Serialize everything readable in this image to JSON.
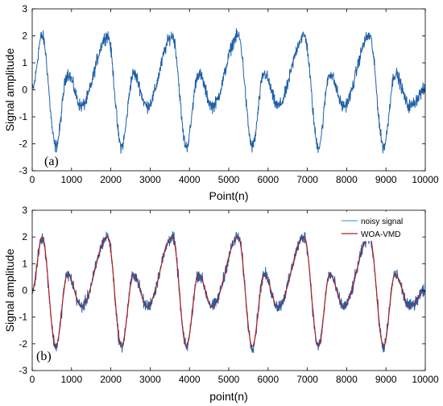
{
  "chart_data": [
    {
      "type": "line",
      "panel_label": "(a)",
      "xlabel": "Point(n)",
      "ylabel": "Signal amplitude",
      "xlim": [
        0,
        10000
      ],
      "ylim": [
        -3,
        3
      ],
      "xticks": [
        "0",
        "1000",
        "2000",
        "3000",
        "4000",
        "5000",
        "6000",
        "7000",
        "8000",
        "9000",
        "10000"
      ],
      "yticks": [
        "3",
        "2",
        "1",
        "0",
        "-1",
        "-2",
        "-3"
      ],
      "legend": false,
      "series": [
        {
          "color": "#1f5fa8",
          "kind": "noisy",
          "noise_amplitude": 0.35,
          "peaks": [
            [
              0,
              0.0
            ],
            [
              250,
              2.0
            ],
            [
              600,
              -2.1
            ],
            [
              900,
              0.6
            ],
            [
              1250,
              -0.6
            ],
            [
              1920,
              2.0
            ],
            [
              2270,
              -2.1
            ],
            [
              2580,
              0.6
            ],
            [
              2920,
              -0.6
            ],
            [
              3570,
              2.0
            ],
            [
              3920,
              -2.1
            ],
            [
              4230,
              0.6
            ],
            [
              4580,
              -0.6
            ],
            [
              5240,
              2.0
            ],
            [
              5600,
              -2.1
            ],
            [
              5900,
              0.6
            ],
            [
              6250,
              -0.6
            ],
            [
              6920,
              2.0
            ],
            [
              7280,
              -2.1
            ],
            [
              7570,
              0.6
            ],
            [
              7920,
              -0.6
            ],
            [
              8580,
              2.0
            ],
            [
              8940,
              -2.1
            ],
            [
              9230,
              0.6
            ],
            [
              9600,
              -0.6
            ],
            [
              10000,
              0.0
            ]
          ]
        }
      ]
    },
    {
      "type": "line",
      "panel_label": "(b)",
      "xlabel": "point(n)",
      "ylabel": "Signal amplitude",
      "xlim": [
        0,
        10000
      ],
      "ylim": [
        -3,
        3
      ],
      "xticks": [
        "0",
        "1000",
        "2000",
        "3000",
        "4000",
        "5000",
        "6000",
        "7000",
        "8000",
        "9000",
        "10000"
      ],
      "yticks": [
        "3",
        "2",
        "1",
        "0",
        "-1",
        "-2",
        "-3"
      ],
      "legend": "top-right",
      "series": [
        {
          "name": "noisy signal",
          "color": "#1f5fa8",
          "legend_color": "#5aa0d8",
          "kind": "noisy",
          "noise_amplitude": 0.35,
          "peaks": [
            [
              0,
              0.0
            ],
            [
              250,
              2.0
            ],
            [
              600,
              -2.1
            ],
            [
              900,
              0.6
            ],
            [
              1250,
              -0.6
            ],
            [
              1920,
              2.0
            ],
            [
              2270,
              -2.1
            ],
            [
              2580,
              0.6
            ],
            [
              2920,
              -0.6
            ],
            [
              3570,
              2.0
            ],
            [
              3920,
              -2.1
            ],
            [
              4230,
              0.6
            ],
            [
              4580,
              -0.6
            ],
            [
              5240,
              2.0
            ],
            [
              5600,
              -2.1
            ],
            [
              5900,
              0.6
            ],
            [
              6250,
              -0.6
            ],
            [
              6920,
              2.0
            ],
            [
              7280,
              -2.1
            ],
            [
              7570,
              0.6
            ],
            [
              7920,
              -0.6
            ],
            [
              8580,
              2.0
            ],
            [
              8940,
              -2.1
            ],
            [
              9230,
              0.6
            ],
            [
              9600,
              -0.6
            ],
            [
              10000,
              0.0
            ]
          ]
        },
        {
          "name": "WOA-VMD",
          "color": "#b22222",
          "kind": "smooth",
          "peaks": [
            [
              0,
              0.0
            ],
            [
              250,
              2.0
            ],
            [
              600,
              -2.1
            ],
            [
              900,
              0.6
            ],
            [
              1250,
              -0.6
            ],
            [
              1920,
              2.0
            ],
            [
              2270,
              -2.1
            ],
            [
              2580,
              0.6
            ],
            [
              2920,
              -0.6
            ],
            [
              3570,
              2.0
            ],
            [
              3920,
              -2.1
            ],
            [
              4230,
              0.6
            ],
            [
              4580,
              -0.6
            ],
            [
              5240,
              2.0
            ],
            [
              5600,
              -2.1
            ],
            [
              5900,
              0.6
            ],
            [
              6250,
              -0.6
            ],
            [
              6920,
              2.0
            ],
            [
              7280,
              -2.1
            ],
            [
              7570,
              0.6
            ],
            [
              7920,
              -0.6
            ],
            [
              8580,
              2.0
            ],
            [
              8940,
              -2.1
            ],
            [
              9230,
              0.6
            ],
            [
              9600,
              -0.6
            ],
            [
              10000,
              0.0
            ]
          ]
        }
      ]
    }
  ]
}
